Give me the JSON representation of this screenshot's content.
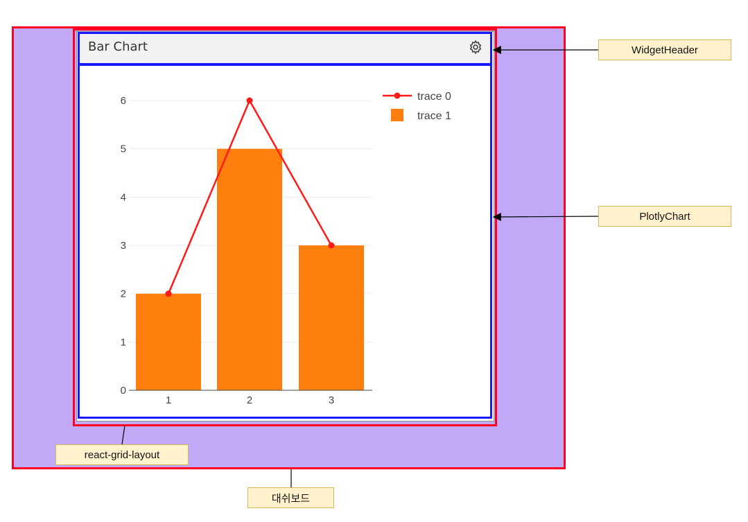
{
  "widget": {
    "title": "Bar Chart",
    "settings_icon": "gear-icon"
  },
  "labels": {
    "widget_header": "WidgetHeader",
    "plotly_chart": "PlotlyChart",
    "grid_layout": "react-grid-layout",
    "dashboard": "대쉬보드"
  },
  "chart_data": {
    "type": "bar",
    "categories": [
      "1",
      "2",
      "3"
    ],
    "x": [
      1,
      2,
      3
    ],
    "series": [
      {
        "name": "trace 0",
        "type": "line",
        "values": [
          2,
          6,
          3
        ],
        "color": "#ff1a1a"
      },
      {
        "name": "trace 1",
        "type": "bar",
        "values": [
          2,
          5,
          3
        ],
        "color": "#ff7f0e"
      }
    ],
    "yticks": [
      0,
      1,
      2,
      3,
      4,
      5,
      6
    ],
    "ylim": [
      0,
      6.3
    ],
    "grid": true,
    "legend": "top-right"
  }
}
